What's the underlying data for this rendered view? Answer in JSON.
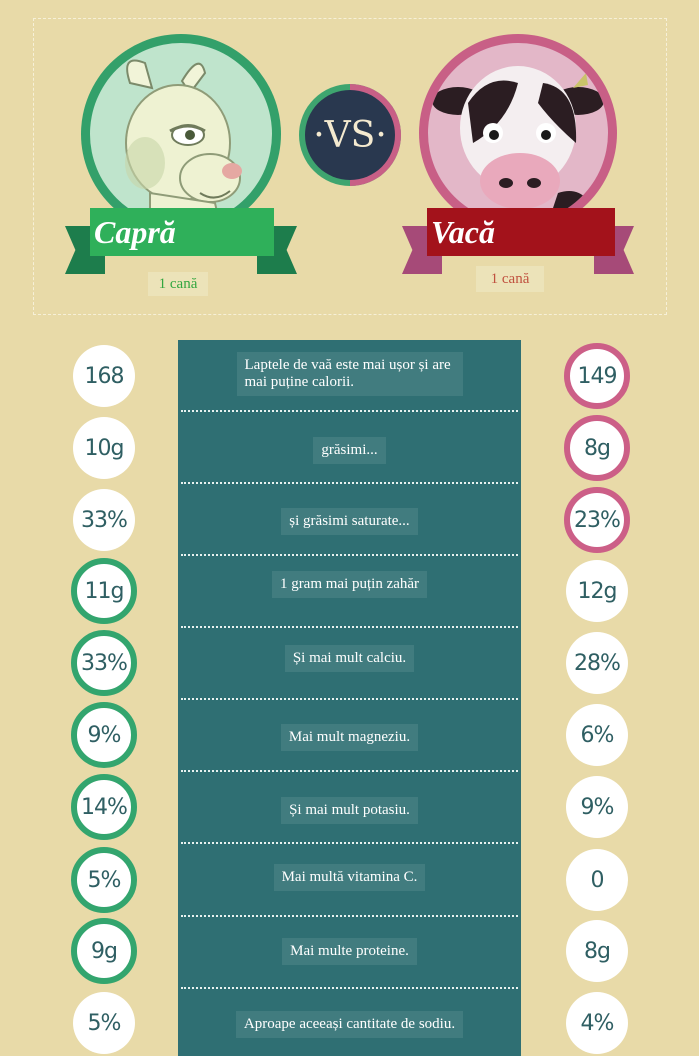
{
  "header": {
    "vs_label": "·VS·",
    "goat": {
      "name": "Capră",
      "serving": "1 cană",
      "color": "#2fb05a"
    },
    "cow": {
      "name": "Vacă",
      "serving": "1 cană",
      "color": "#a3121b"
    }
  },
  "colors": {
    "background": "#e8daa8",
    "center_panel": "#2f6f73",
    "goat_accent": "#33a56e",
    "cow_accent": "#cc5f87",
    "number_text": "#2f5f63"
  },
  "rows": [
    {
      "goat": "168",
      "cow": "149",
      "text": "Laptele de vaă este mai ușor și are mai puține calorii.",
      "winner": "cow"
    },
    {
      "goat": "10g",
      "cow": "8g",
      "text": "grăsimi...",
      "winner": "cow"
    },
    {
      "goat": "33%",
      "cow": "23%",
      "text": "și grăsimi saturate...",
      "winner": "cow"
    },
    {
      "goat": "11g",
      "cow": "12g",
      "text": "1 gram mai puțin zahăr",
      "winner": "goat"
    },
    {
      "goat": "33%",
      "cow": "28%",
      "text": "Și mai mult calciu.",
      "winner": "goat"
    },
    {
      "goat": "9%",
      "cow": "6%",
      "text": "Mai mult magneziu.",
      "winner": "goat"
    },
    {
      "goat": "14%",
      "cow": "9%",
      "text": "Și mai mult potasiu.",
      "winner": "goat"
    },
    {
      "goat": "5%",
      "cow": "0",
      "text": "Mai multă vitamina C.",
      "winner": "goat"
    },
    {
      "goat": "9g",
      "cow": "8g",
      "text": "Mai multe proteine.",
      "winner": "goat"
    },
    {
      "goat": "5%",
      "cow": "4%",
      "text": "Aproape aceeași cantitate de sodiu.",
      "winner": "none"
    }
  ]
}
